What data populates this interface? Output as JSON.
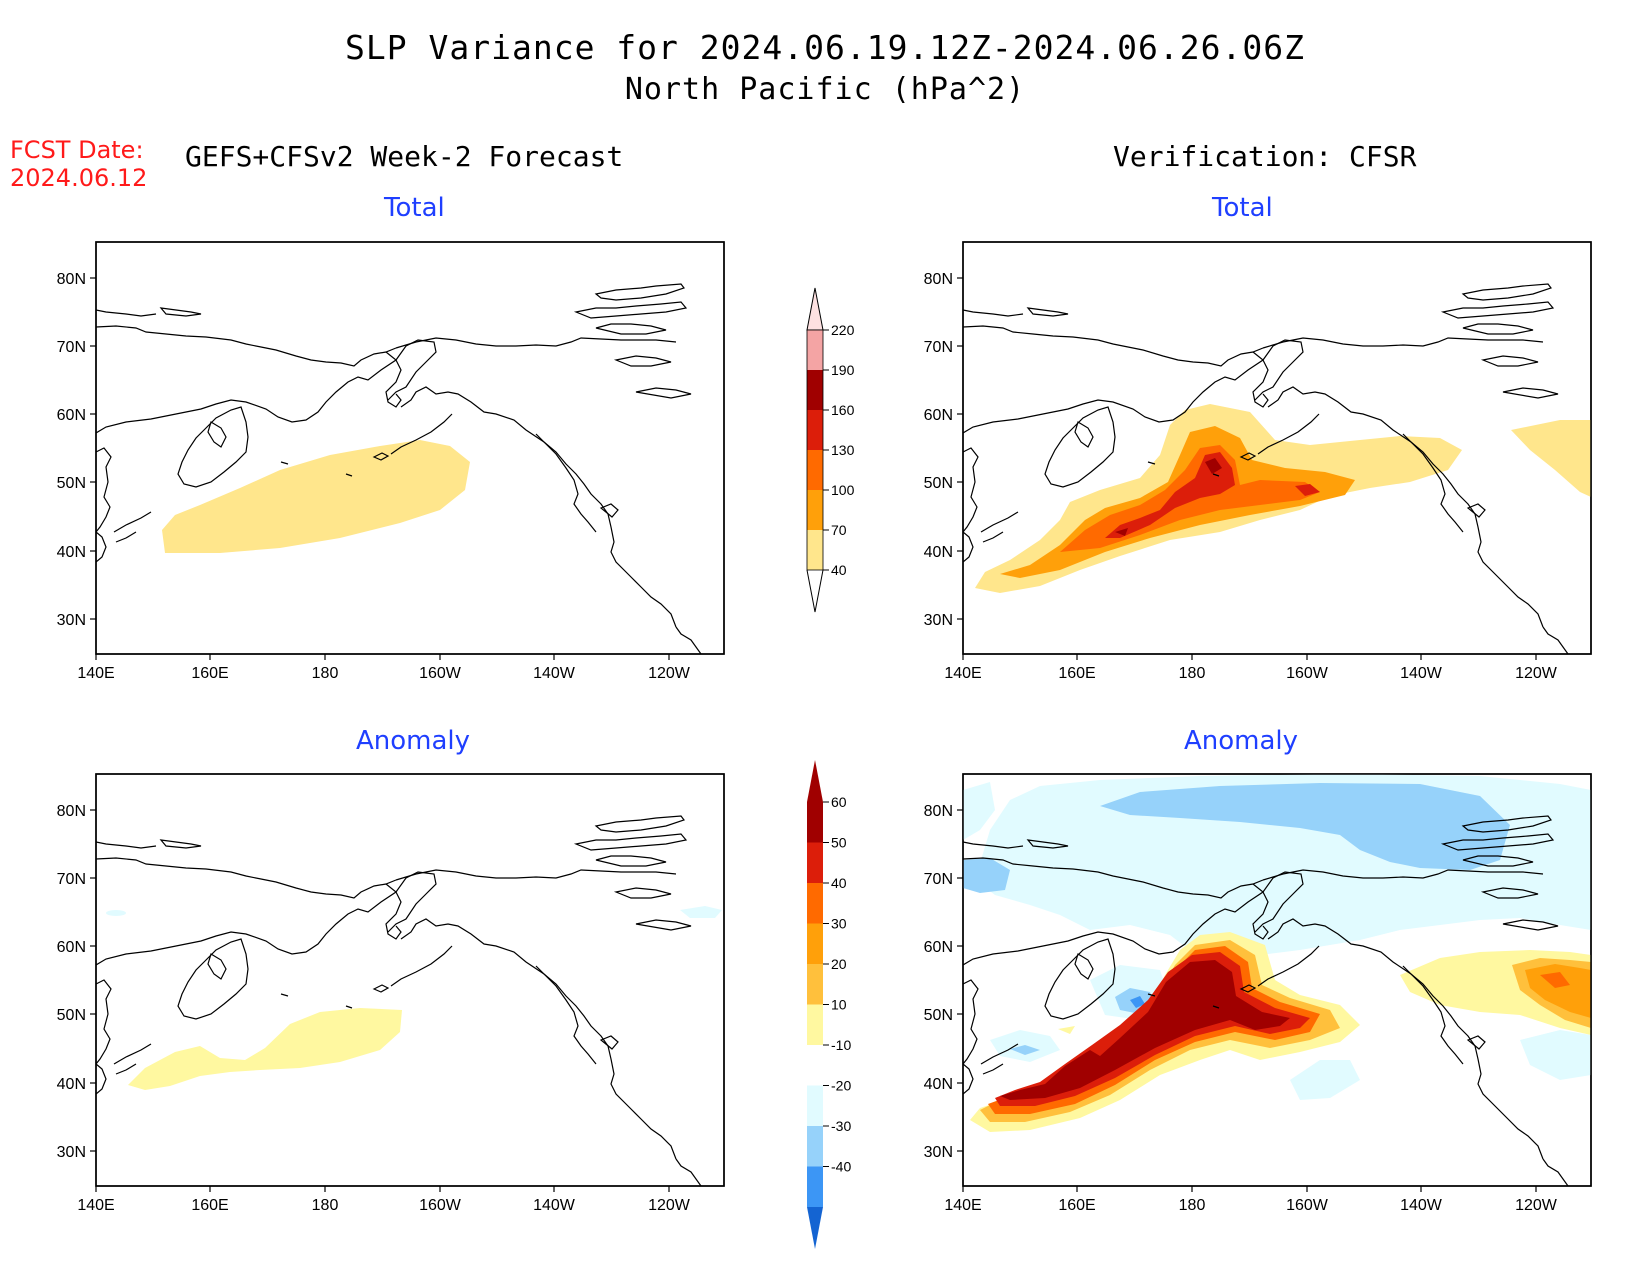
{
  "title_line1": "SLP Variance for 2024.06.19.12Z-2024.06.26.06Z",
  "title_line2": "North Pacific (hPa^2)",
  "fcst_label": "FCST Date:",
  "fcst_date": "2024.06.12",
  "left_header": "GEFS+CFSv2 Week-2 Forecast",
  "right_header": "Verification: CFSR",
  "panel_titles": {
    "total": "Total",
    "anomaly": "Anomaly"
  },
  "axes": {
    "lat_labels": [
      "80N",
      "70N",
      "60N",
      "50N",
      "40N",
      "30N"
    ],
    "lon_labels": [
      "140E",
      "160E",
      "180",
      "160W",
      "140W",
      "120W"
    ]
  },
  "total_colorbar": {
    "labels": [
      "220",
      "190",
      "160",
      "130",
      "100",
      "70",
      "40"
    ],
    "colors": [
      "#fde1e1",
      "#f4a4a4",
      "#a00000",
      "#dc1e0a",
      "#ff6a00",
      "#ffa00a",
      "#ffe68c"
    ]
  },
  "anomaly_colorbar": {
    "labels": [
      "60",
      "50",
      "40",
      "30",
      "20",
      "10",
      "-10",
      "-20",
      "-30",
      "-40"
    ],
    "colors": [
      "#a00000",
      "#dc1e0a",
      "#ff6a00",
      "#ffa00a",
      "#ffc03c",
      "#fff8a0",
      "#ffffff",
      "#e1fbff",
      "#96d2fa",
      "#3c96f5",
      "#1464d2"
    ]
  }
}
